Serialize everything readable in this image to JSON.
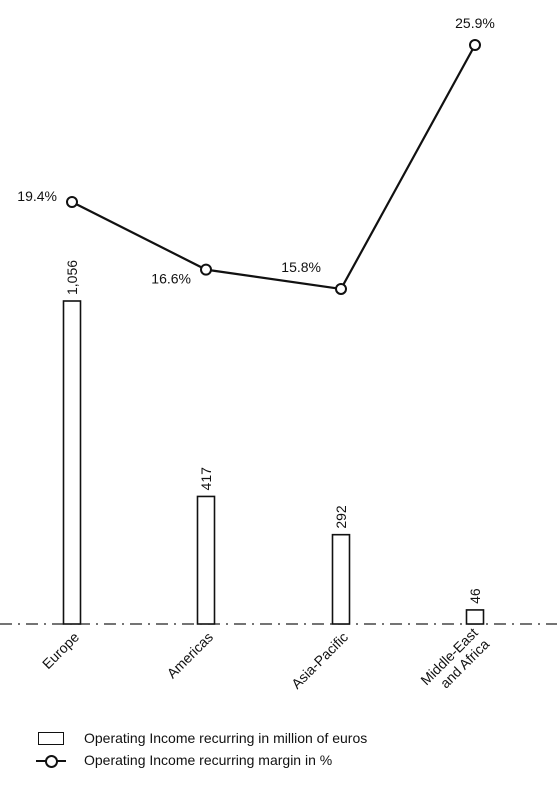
{
  "chart_data": {
    "type": "bar",
    "categories": [
      "Europe",
      "Americas",
      "Asia-Pacific",
      "Middle-East and Africa"
    ],
    "category_lines": [
      [
        "Europe"
      ],
      [
        "Americas"
      ],
      [
        "Asia-Pacific"
      ],
      [
        "Middle-East",
        "and Africa"
      ]
    ],
    "series": [
      {
        "name": "Operating Income recurring in million of euros",
        "type": "bar",
        "values": [
          1056,
          417,
          292,
          46
        ],
        "labels": [
          "1,056",
          "417",
          "292",
          "46"
        ]
      },
      {
        "name": "Operating Income recurring margin in %",
        "type": "line",
        "values": [
          19.4,
          16.6,
          15.8,
          25.9
        ],
        "labels": [
          "19.4%",
          "16.6%",
          "15.8%",
          "25.9%"
        ]
      }
    ],
    "title": "",
    "xlabel": "",
    "ylabel": "",
    "grid": false,
    "legend_position": "bottom-left"
  },
  "legend": {
    "bar_label": "Operating Income recurring in million of euros",
    "line_label": "Operating Income recurring margin in %"
  }
}
